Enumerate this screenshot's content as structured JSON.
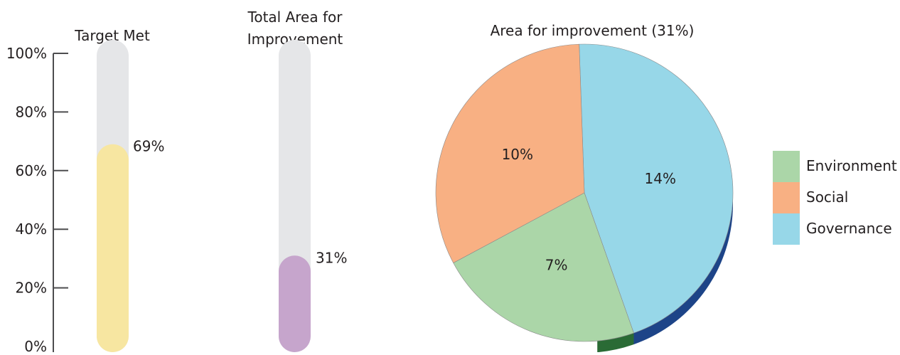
{
  "chart_data": [
    {
      "type": "bar",
      "title": "Target Met",
      "categories": [
        "Target Met"
      ],
      "values": [
        69
      ],
      "value_label": "69%",
      "ylim": [
        0,
        100
      ],
      "ytick_labels": [
        "0%",
        "20%",
        "40%",
        "60%",
        "80%",
        "100%"
      ],
      "colors": {
        "fill": "#f7e6a1",
        "track": "#e5e6e8"
      }
    },
    {
      "type": "bar",
      "title": "Total Area for Improvement",
      "title_lines": [
        "Total Area for",
        "Improvement"
      ],
      "categories": [
        "Total Area for Improvement"
      ],
      "values": [
        31
      ],
      "value_label": "31%",
      "ylim": [
        0,
        100
      ],
      "colors": {
        "fill": "#c6a5cc",
        "track": "#e5e6e8"
      }
    },
    {
      "type": "pie",
      "title": "Area for improvement (31%)",
      "slices": [
        {
          "name": "Governance",
          "value": 14,
          "label": "14%",
          "color": "#97d7e8"
        },
        {
          "name": "Environment",
          "value": 7,
          "label": "7%",
          "color": "#abd6a8"
        },
        {
          "name": "Social",
          "value": 10,
          "label": "10%",
          "color": "#f8b083"
        }
      ],
      "legend": [
        "Environment",
        "Social",
        "Governance"
      ],
      "legend_position": "right",
      "depth_colors": {
        "Governance": "#1d4488",
        "Environment": "#2a6b35"
      }
    }
  ]
}
